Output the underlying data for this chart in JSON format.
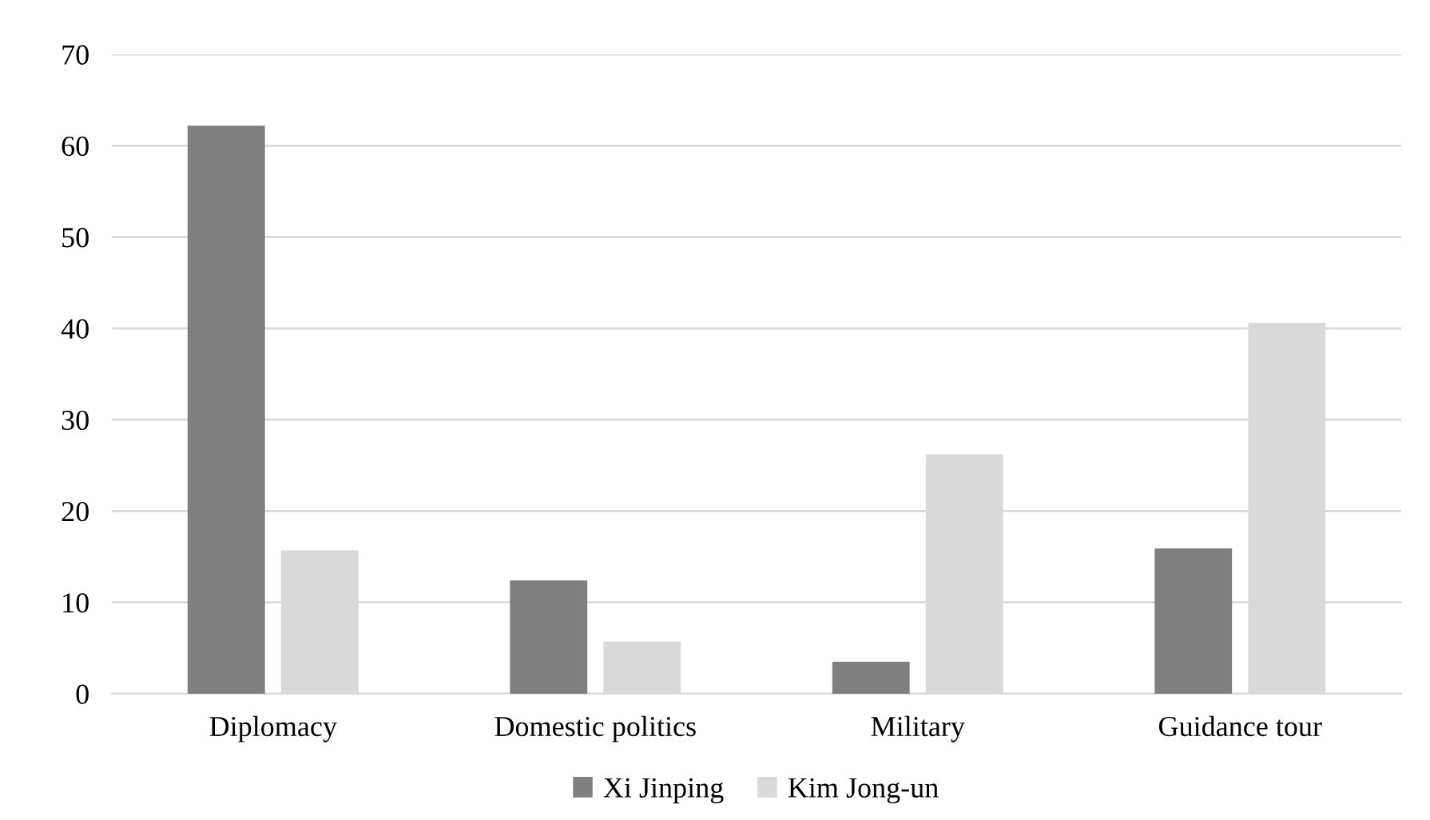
{
  "chart_data": {
    "type": "bar",
    "categories": [
      "Diplomacy",
      "Domestic politics",
      "Military",
      "Guidance tour"
    ],
    "series": [
      {
        "name": "Xi Jinping",
        "color": "#7f7f7f",
        "values": [
          62.2,
          12.4,
          3.5,
          15.9
        ]
      },
      {
        "name": "Kim Jong-un",
        "color": "#d9d9d9",
        "values": [
          15.7,
          5.7,
          26.2,
          40.6
        ]
      }
    ],
    "ylim": [
      0,
      70
    ],
    "yticks": [
      0,
      10,
      20,
      30,
      40,
      50,
      60,
      70
    ],
    "grid": "y",
    "legend": "bottom"
  }
}
